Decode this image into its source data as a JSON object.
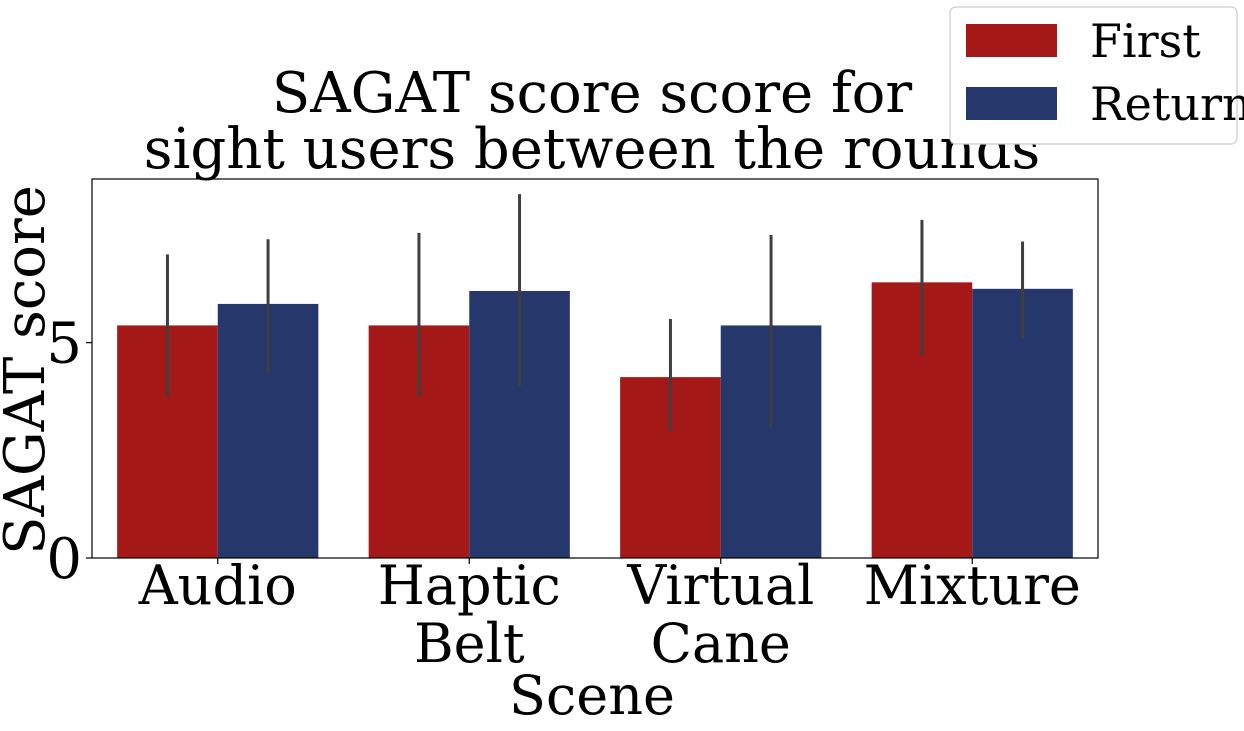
{
  "chart_data": {
    "type": "bar",
    "title_lines": [
      "SAGAT score score for",
      "sight users between the rounds"
    ],
    "xlabel": "Scene",
    "ylabel": "SAGAT score",
    "ylim": [
      0,
      8.8
    ],
    "yticks": [
      0,
      5
    ],
    "categories": [
      [
        "Audio"
      ],
      [
        "Haptic",
        "Belt"
      ],
      [
        "Virtual",
        "Cane"
      ],
      [
        "Mixture"
      ]
    ],
    "series": [
      {
        "name": "First",
        "color": "#a51818",
        "values": [
          5.4,
          5.4,
          4.2,
          6.4
        ],
        "ci": [
          [
            3.75,
            7.05
          ],
          [
            3.75,
            7.55
          ],
          [
            2.95,
            5.55
          ],
          [
            4.7,
            7.85
          ]
        ]
      },
      {
        "name": "Return",
        "color": "#25376b",
        "values": [
          5.9,
          6.2,
          5.4,
          6.25
        ],
        "ci": [
          [
            4.3,
            7.4
          ],
          [
            4.0,
            8.45
          ],
          [
            3.05,
            7.5
          ],
          [
            5.1,
            7.35
          ]
        ]
      }
    ],
    "legend_position": "top-right",
    "grid": false
  }
}
